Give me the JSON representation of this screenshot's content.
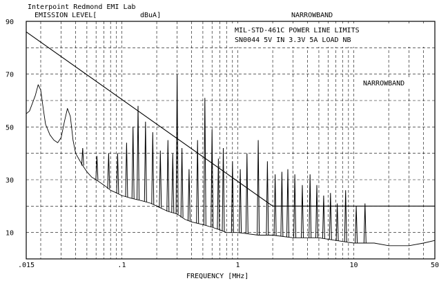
{
  "header": {
    "lab": "Interpoint Redmond EMI Lab",
    "ylabel": "EMISSION LEVEL[",
    "yunit": "dBuA]",
    "mode": "NARROWBAND"
  },
  "chart_data": {
    "type": "line",
    "title": "MIL-STD-461C POWER LINE LIMITS",
    "subtitle": "SN0044 5V IN 3.3V 5A LOAD NB",
    "annotation": "NARROWBAND",
    "xlabel": "FREQUENCY [MHz]",
    "x_scale": "log",
    "xlim": [
      0.015,
      50
    ],
    "ylim": [
      0,
      90
    ],
    "grid": true,
    "x_tick_labels": [
      {
        "value": 0.015,
        "label": ".015"
      },
      {
        "value": 0.1,
        "label": ".1"
      },
      {
        "value": 1,
        "label": "1"
      },
      {
        "value": 10,
        "label": "10"
      },
      {
        "value": 50,
        "label": "50"
      }
    ],
    "y_tick_labels": [
      {
        "value": 90,
        "label": "90"
      },
      {
        "value": 70,
        "label": "70"
      },
      {
        "value": 50,
        "label": "50"
      },
      {
        "value": 30,
        "label": "30"
      },
      {
        "value": 10,
        "label": "10"
      }
    ],
    "series": [
      {
        "role": "limit",
        "x": [
          0.015,
          2,
          50
        ],
        "y": [
          86,
          20,
          20
        ]
      },
      {
        "role": "emission",
        "x": [
          0.015,
          0.016,
          0.018,
          0.019,
          0.02,
          0.021,
          0.022,
          0.024,
          0.026,
          0.028,
          0.03,
          0.032,
          0.034,
          0.036,
          0.038,
          0.04,
          0.045,
          0.05,
          0.055,
          0.06,
          0.07,
          0.08,
          0.09,
          0.1,
          0.12,
          0.15,
          0.18,
          0.2,
          0.25,
          0.3,
          0.35,
          0.4,
          0.5,
          0.6,
          0.7,
          0.8,
          1.0,
          1.5,
          2.0,
          3.0,
          5.0,
          7.0,
          10,
          15,
          20,
          30,
          40,
          50
        ],
        "y": [
          55,
          56,
          62,
          66,
          64,
          57,
          51,
          47,
          45,
          44,
          46,
          52,
          57,
          54,
          45,
          40,
          36,
          33,
          31,
          30,
          28,
          26,
          25,
          24,
          23,
          22,
          21,
          20,
          18,
          17,
          15,
          14,
          13,
          12,
          11,
          10,
          10,
          9,
          9,
          8,
          8,
          7,
          6,
          6,
          5,
          5,
          6,
          7
        ]
      }
    ],
    "spikes": {
      "x": [
        0.046,
        0.061,
        0.077,
        0.092,
        0.11,
        0.125,
        0.138,
        0.16,
        0.185,
        0.215,
        0.25,
        0.275,
        0.3,
        0.33,
        0.38,
        0.45,
        0.52,
        0.6,
        0.68,
        0.75,
        0.9,
        1.05,
        1.2,
        1.5,
        1.8,
        2.1,
        2.4,
        2.7,
        3.1,
        3.6,
        4.2,
        4.8,
        5.5,
        6.3,
        7.2,
        8.5,
        10.5,
        12.5
      ],
      "y": [
        42,
        39,
        40,
        40,
        44,
        50,
        58,
        52,
        48,
        41,
        45,
        40,
        70,
        42,
        34,
        45,
        61,
        49,
        38,
        42,
        37,
        34,
        40,
        45,
        37,
        32,
        33,
        34,
        32,
        28,
        32,
        28,
        24,
        25,
        21,
        26,
        20,
        21
      ]
    }
  }
}
